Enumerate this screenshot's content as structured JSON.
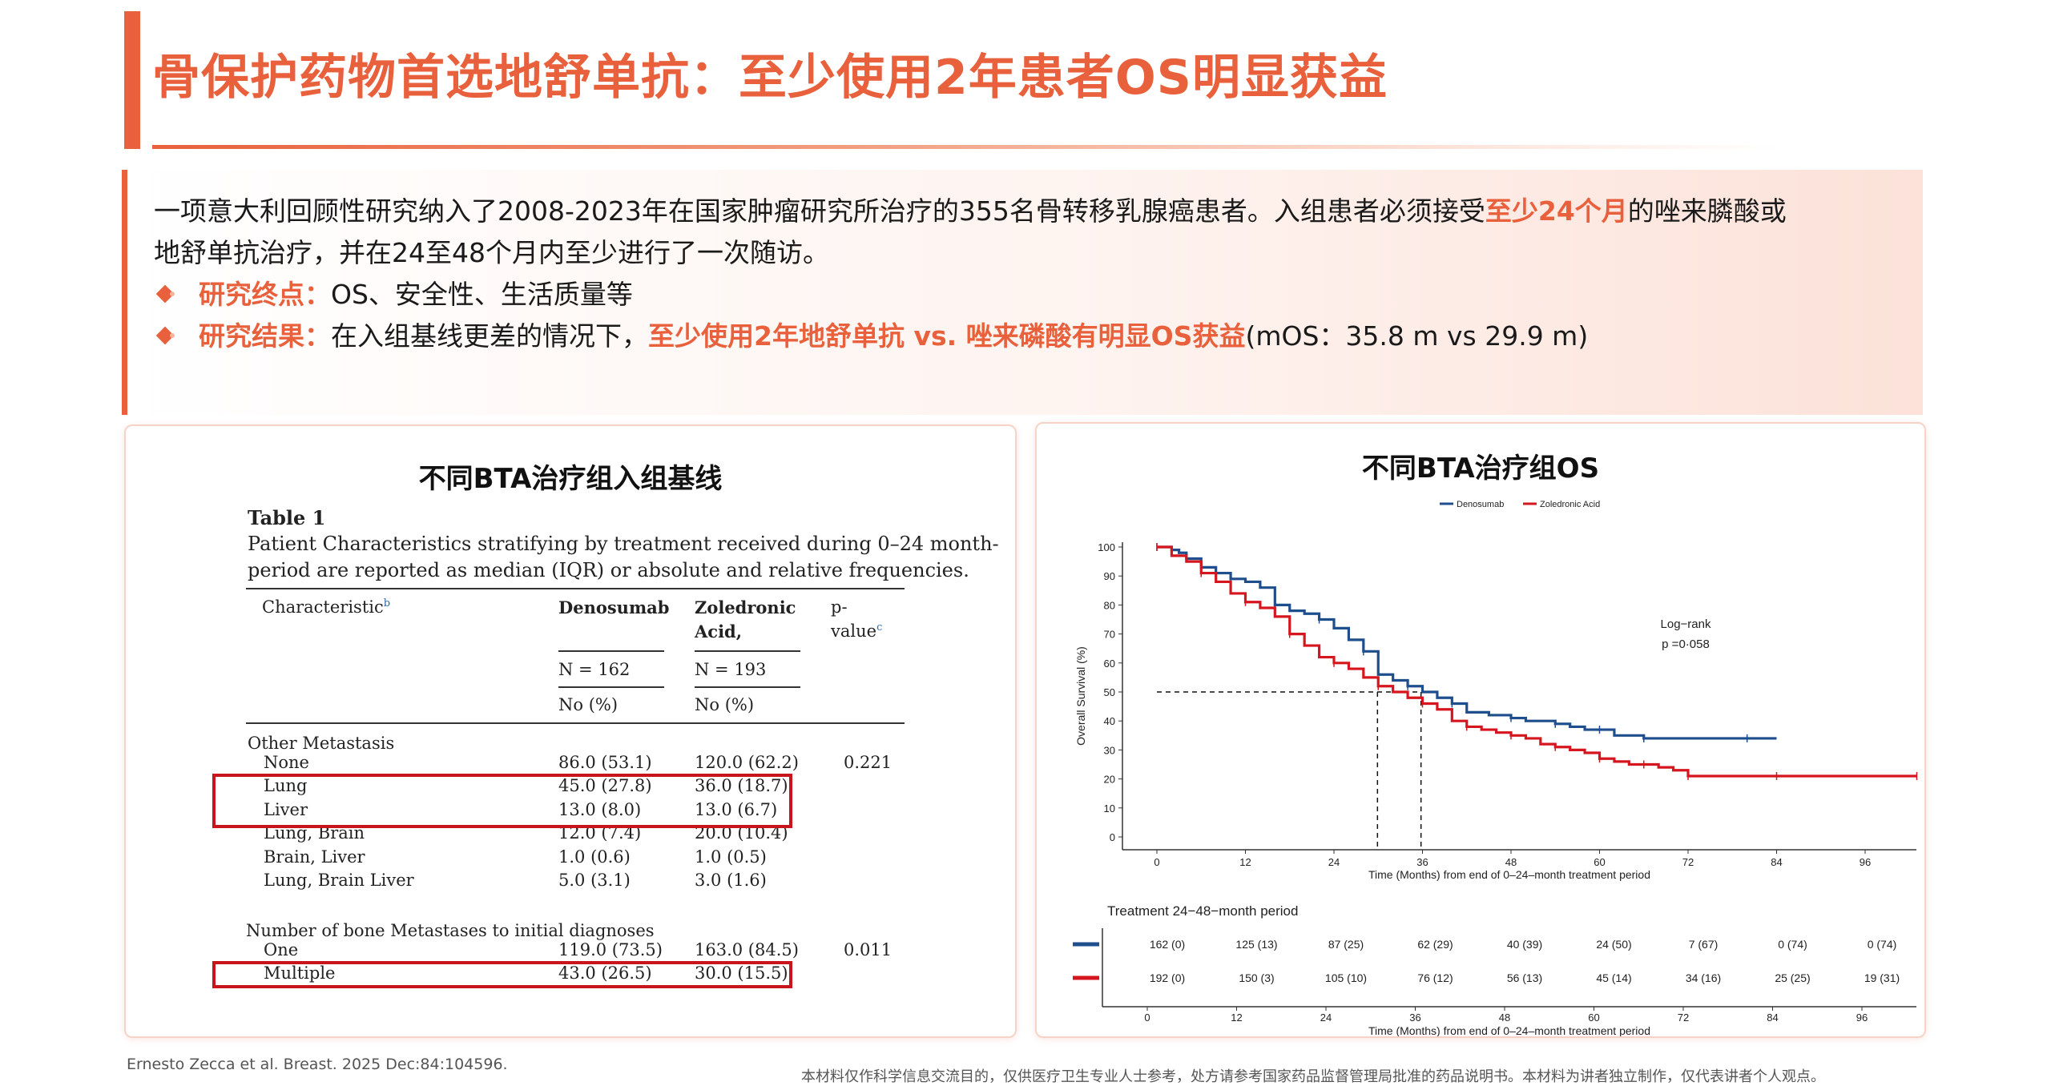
{
  "header": {
    "title": "骨保护药物首选地舒单抗：至少使用2年患者OS明显获益"
  },
  "intro": {
    "p1_a": "一项意大利回顾性研究纳入了2008-2023年在国家肿瘤研究所治疗的355名骨转移乳腺癌患者。入组患者必须接受",
    "p1_hl": "至少24个月",
    "p1_b": "的唑来膦酸或",
    "p2": "地舒单抗治疗，并在24至48个月内至少进行了一次随访。",
    "b1_label": "研究终点：",
    "b1_text": "OS、安全性、生活质量等",
    "b2_label": "研究结果：",
    "b2_text": "在入组基线更差的情况下，",
    "b2_hl": "至少使用2年地舒单抗 vs. 唑来磷酸有明显OS获益",
    "b2_tail": "(mOS：35.8 m vs 29.9 m)"
  },
  "left_card": {
    "title": "不同BTA治疗组入组基线",
    "table": {
      "name": "Table 1",
      "caption_1": "Patient Characteristics  stratifying by treatment received during 0–24 month-",
      "caption_2": "period are reported as median (IQR) or absolute and relative frequencies.",
      "col_characteristic": "Characteristic",
      "col_characteristic_sup": "b",
      "col_denosumab": "Denosumab",
      "col_zoledronic_1": "Zoledronic",
      "col_zoledronic_2": "Acid,",
      "col_pvalue_1": "p-",
      "col_pvalue_2": "value",
      "col_pvalue_sup": "c",
      "n_denosumab": "N = 162",
      "n_zoledronic": "N = 193",
      "unit_denosumab": "No (%)",
      "unit_zoledronic": "No (%)",
      "section_1": "Other Metastasis",
      "rows_1": [
        {
          "label": "None",
          "den": "86.0 (53.1)",
          "zol": "120.0 (62.2)",
          "p": "0.221"
        },
        {
          "label": "Lung",
          "den": "45.0 (27.8)",
          "zol": "36.0 (18.7)",
          "p": ""
        },
        {
          "label": "Liver",
          "den": "13.0 (8.0)",
          "zol": "13.0 (6.7)",
          "p": ""
        },
        {
          "label": "Lung, Brain",
          "den": "12.0 (7.4)",
          "zol": "20.0 (10.4)",
          "p": ""
        },
        {
          "label": "Brain, Liver",
          "den": "1.0 (0.6)",
          "zol": "1.0 (0.5)",
          "p": ""
        },
        {
          "label": "Lung, Brain Liver",
          "den": "5.0 (3.1)",
          "zol": "3.0 (1.6)",
          "p": ""
        }
      ],
      "section_2": "Number of bone Metastases to initial diagnoses",
      "rows_2": [
        {
          "label": "One",
          "den": "119.0 (73.5)",
          "zol": "163.0 (84.5)",
          "p": "0.011"
        },
        {
          "label": "Multiple",
          "den": "43.0 (26.5)",
          "zol": "30.0 (15.5)",
          "p": ""
        }
      ]
    }
  },
  "right_card": {
    "title": "不同BTA治疗组OS"
  },
  "chart_data": {
    "type": "line",
    "title": "",
    "xlabel": "Time (Months) from end of 0–24–month treatment period",
    "ylabel": "Overall Survival (%)",
    "xlim": [
      0,
      100
    ],
    "ylim": [
      0,
      100
    ],
    "xticks": [
      0,
      12,
      24,
      36,
      48,
      60,
      72,
      84,
      96
    ],
    "yticks": [
      0,
      10,
      20,
      30,
      40,
      50,
      60,
      70,
      80,
      90,
      100
    ],
    "legend": "top-center",
    "annotation_1": "Log−rank",
    "annotation_2": "p =0·058",
    "median_lines": [
      {
        "x": 29.9,
        "y": 50
      },
      {
        "x": 35.8,
        "y": 50
      }
    ],
    "series": [
      {
        "name": "Denosumab",
        "color": "#1F4E8C",
        "x": [
          0,
          2,
          3,
          4,
          6,
          8,
          10,
          12,
          14,
          16,
          18,
          20,
          22,
          24,
          26,
          28,
          30,
          32,
          34,
          36,
          38,
          40,
          42,
          45,
          48,
          50,
          52,
          54,
          56,
          58,
          60,
          62,
          64,
          66,
          70,
          76,
          80,
          84
        ],
        "y": [
          100,
          99,
          98,
          96,
          93,
          91,
          89,
          88,
          86,
          80,
          78,
          77,
          75,
          72,
          68,
          64,
          56,
          54,
          52,
          50,
          48,
          46,
          43,
          42,
          41,
          40,
          40,
          39,
          38,
          37,
          37,
          35,
          35,
          34,
          34,
          34,
          34,
          34
        ]
      },
      {
        "name": "Zoledronic Acid",
        "color": "#D6161E",
        "x": [
          0,
          2,
          4,
          6,
          8,
          10,
          12,
          14,
          16,
          18,
          20,
          22,
          24,
          26,
          28,
          30,
          32,
          34,
          36,
          38,
          40,
          42,
          44,
          46,
          48,
          50,
          52,
          54,
          56,
          58,
          60,
          62,
          64,
          66,
          68,
          70,
          72,
          76,
          80,
          84,
          90,
          96,
          103
        ],
        "y": [
          100,
          97,
          95,
          91,
          88,
          84,
          81,
          79,
          76,
          70,
          66,
          62,
          60,
          58,
          55,
          52,
          50,
          48,
          46,
          44,
          40,
          38,
          37,
          36,
          35,
          34,
          32,
          31,
          30,
          29,
          27,
          26,
          25,
          25,
          24,
          23,
          21,
          21,
          21,
          21,
          21,
          21,
          21
        ]
      }
    ],
    "risk_table": {
      "title": "Treatment 24−48−month period",
      "xlabel": "Time (Months) from end of 0–24–month treatment period",
      "times": [
        0,
        12,
        24,
        36,
        48,
        60,
        72,
        84,
        96
      ],
      "rows": [
        {
          "name": "Denosumab",
          "color": "#1F4E8C",
          "values": [
            "162 (0)",
            "125 (13)",
            "87 (25)",
            "62 (29)",
            "40 (39)",
            "24 (50)",
            "7 (67)",
            "0 (74)",
            "0 (74)"
          ]
        },
        {
          "name": "Zoledronic Acid",
          "color": "#D6161E",
          "values": [
            "192 (0)",
            "150 (3)",
            "105 (10)",
            "76 (12)",
            "56 (13)",
            "45 (14)",
            "34 (16)",
            "25 (25)",
            "19 (31)"
          ]
        }
      ]
    }
  },
  "footer": {
    "citation": "Ernesto Zecca et al. Breast. 2025 Dec:84:104596.",
    "disclaimer": "本材料仅作科学信息交流目的，仅供医疗卫生专业人士参考，处方请参考国家药品监督管理局批准的药品说明书。本材料为讲者独立制作，仅代表讲者个人观点。"
  }
}
